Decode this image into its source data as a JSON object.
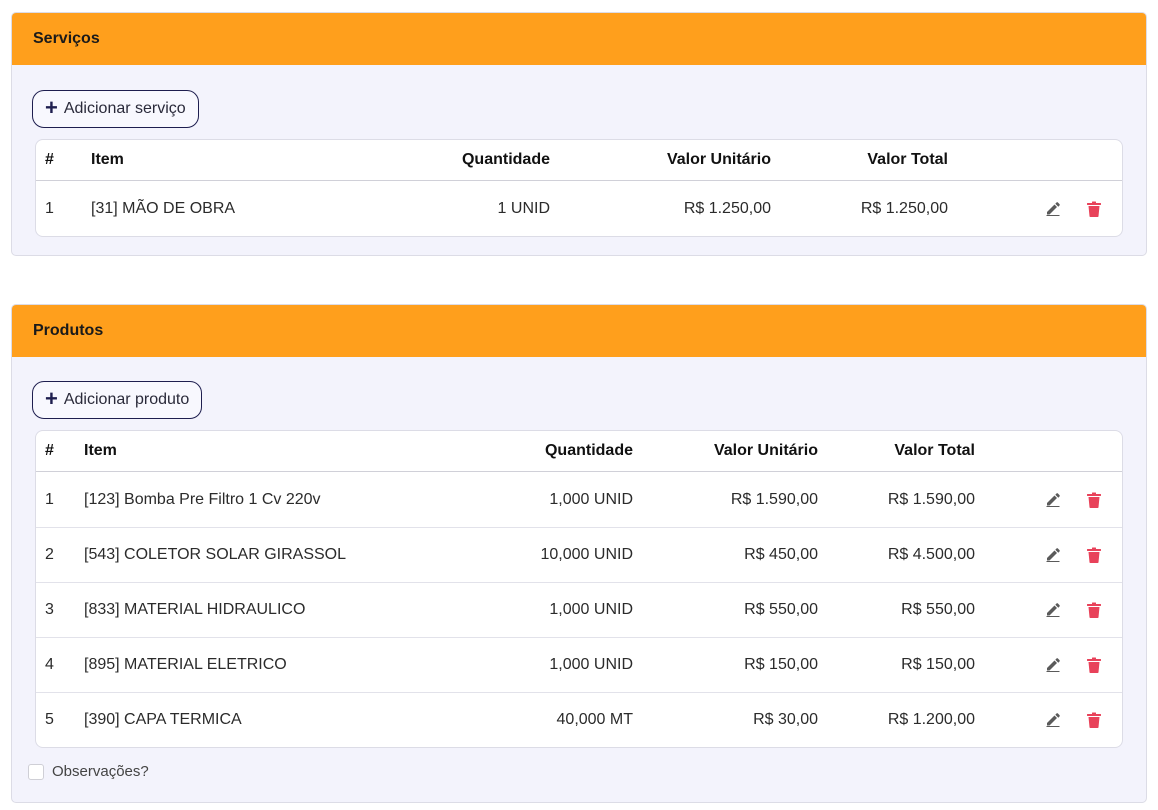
{
  "services": {
    "title": "Serviços",
    "add_label": "Adicionar serviço",
    "headers": {
      "num": "#",
      "item": "Item",
      "qty": "Quantidade",
      "unit": "Valor Unitário",
      "total": "Valor Total"
    },
    "rows": [
      {
        "num": "1",
        "item": "[31] MÃO DE OBRA",
        "qty": "1 UNID",
        "unit": "R$ 1.250,00",
        "total": "R$ 1.250,00"
      }
    ]
  },
  "products": {
    "title": "Produtos",
    "add_label": "Adicionar produto",
    "headers": {
      "num": "#",
      "item": "Item",
      "qty": "Quantidade",
      "unit": "Valor Unitário",
      "total": "Valor Total"
    },
    "rows": [
      {
        "num": "1",
        "item": "[123] Bomba Pre Filtro 1 Cv 220v",
        "qty": "1,000 UNID",
        "unit": "R$ 1.590,00",
        "total": "R$ 1.590,00"
      },
      {
        "num": "2",
        "item": "[543] COLETOR SOLAR GIRASSOL",
        "qty": "10,000 UNID",
        "unit": "R$ 450,00",
        "total": "R$ 4.500,00"
      },
      {
        "num": "3",
        "item": "[833] MATERIAL HIDRAULICO",
        "qty": "1,000 UNID",
        "unit": "R$ 550,00",
        "total": "R$ 550,00"
      },
      {
        "num": "4",
        "item": "[895] MATERIAL ELETRICO",
        "qty": "1,000 UNID",
        "unit": "R$ 150,00",
        "total": "R$ 150,00"
      },
      {
        "num": "5",
        "item": "[390] CAPA TERMICA",
        "qty": "40,000 MT",
        "unit": "R$ 30,00",
        "total": "R$ 1.200,00"
      }
    ]
  },
  "observations": {
    "label": "Observações?",
    "checked": false
  },
  "icons": {
    "add": "plus-icon",
    "edit": "pencil-icon",
    "delete": "trash-icon"
  },
  "colors": {
    "header_bg": "#ff9f1c",
    "card_bg": "#f3f3fc",
    "button_border": "#1e1e4f",
    "delete_icon": "#e8425a",
    "edit_icon": "#555555"
  }
}
